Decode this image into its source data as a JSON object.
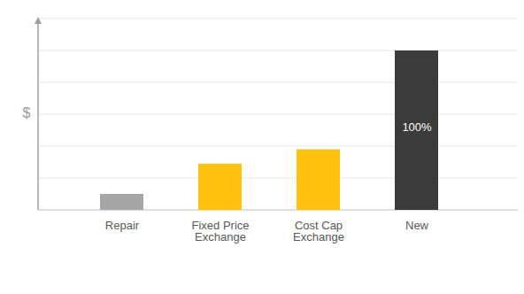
{
  "chart_data": {
    "type": "bar",
    "categories": [
      "Repair",
      "Fixed Price Exchange",
      "Cost Cap Exchange",
      "New"
    ],
    "values": [
      10,
      29,
      38,
      100
    ],
    "colors": [
      "#a6a6a6",
      "#ffc20e",
      "#ffc20e",
      "#3b3b3b"
    ],
    "data_labels": true,
    "value_labels": [
      null,
      null,
      null,
      "100%"
    ],
    "ylabel": "$",
    "ylim": [
      0,
      120
    ],
    "yticks": [
      0,
      20,
      40,
      60,
      80,
      100,
      120
    ],
    "grid": true,
    "tick_labels": "x"
  }
}
